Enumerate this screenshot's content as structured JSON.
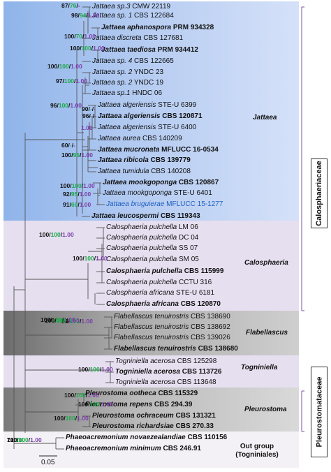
{
  "taxa": [
    {
      "name": "Jattaea sp.3",
      "code": "CMW 22119",
      "bold": false
    },
    {
      "name": "Jattaea sp. 1",
      "code": "CBS 122684",
      "bold": false
    },
    {
      "name": "Jattaea aphanospora",
      "code": "PRM 934328",
      "bold": true
    },
    {
      "name": "Jattaea discreta",
      "code": "CBS 127681",
      "bold": false
    },
    {
      "name": "Jattaea taediosa",
      "code": "PRM 934412",
      "bold": true
    },
    {
      "name": "Jattaea sp. 4",
      "code": "CBS 122665",
      "bold": false
    },
    {
      "name": "Jattaea sp. 2",
      "code": "YNDC 23",
      "bold": false
    },
    {
      "name": "Jattaea sp. 2",
      "code": "YNDC 19",
      "bold": false
    },
    {
      "name": "Jattaea sp.1",
      "code": "HNDC 06",
      "bold": false
    },
    {
      "name": "Jattaea algeriensis",
      "code": "STE-U 6399",
      "bold": false
    },
    {
      "name": "Jattaea algeriensis",
      "code": "CBS 120871",
      "bold": true
    },
    {
      "name": "Jattaea algeriensis",
      "code": "STE-U 6400",
      "bold": false
    },
    {
      "name": "Jattaea aurea",
      "code": "CBS 140209",
      "bold": false
    },
    {
      "name": "Jattaea mucronata",
      "code": "MFLUCC 16-0534",
      "bold": true
    },
    {
      "name": "Jattaea ribicola",
      "code": "CBS 139779",
      "bold": true
    },
    {
      "name": "Jattaea tumidula",
      "code": "CBS 140208",
      "bold": false
    },
    {
      "name": "Jattaea mookgoponga",
      "code": "CBS 120867",
      "bold": true
    },
    {
      "name": "Jattaea mookgoponga",
      "code": "STE-U 6401",
      "bold": false
    },
    {
      "name": "Jattaea bruguierae",
      "code": "MFLUCC 15-1277",
      "bold": false,
      "new": true
    },
    {
      "name": "Jattaea leucospermi",
      "code": "CBS 119343",
      "bold": true
    },
    {
      "name": "Calosphaeria pulchella",
      "code": "LM 06",
      "bold": false
    },
    {
      "name": "Calosphaeria pulchella",
      "code": "DC 04",
      "bold": false
    },
    {
      "name": "Calosphaeria pulchella",
      "code": "SS 07",
      "bold": false
    },
    {
      "name": "Calosphaeria pulchella",
      "code": "SM 05",
      "bold": false
    },
    {
      "name": "Calosphaeria pulchella",
      "code": "CBS 115999",
      "bold": true
    },
    {
      "name": "Calosphaeria pulchella",
      "code": "CCTU 316",
      "bold": false
    },
    {
      "name": "Calosphaeria africana",
      "code": "STE-U 6181",
      "bold": false
    },
    {
      "name": "Calosphaeria africana",
      "code": "CBS 120870",
      "bold": true
    },
    {
      "name": "Flabellascus tenuirostris",
      "code": "CBS 138690",
      "bold": false
    },
    {
      "name": "Flabellascus tenuirostris",
      "code": "CBS 138692",
      "bold": false
    },
    {
      "name": "Flabellascus tenuirostris",
      "code": "CBS 139026",
      "bold": false
    },
    {
      "name": "Flabellascus tenuirostris",
      "code": "CBS 138680",
      "bold": true
    },
    {
      "name": "Togniniella acerosa",
      "code": "CBS 125298",
      "bold": false
    },
    {
      "name": "Togniniella acerosa",
      "code": "CBS 113726",
      "bold": true
    },
    {
      "name": "Togniniella acerosa",
      "code": "CBS 113648",
      "bold": false
    },
    {
      "name": "Pleurostoma ootheca",
      "code": "CBS 115329",
      "bold": true
    },
    {
      "name": "Pleurostoma repens",
      "code": "CBS 294.39",
      "bold": true
    },
    {
      "name": "Pleurostoma ochraceum",
      "code": "CBS 131321",
      "bold": true
    },
    {
      "name": "Pleurostoma richardsiae",
      "code": "CBS 270.33",
      "bold": true
    },
    {
      "name": "Phaeoacremonium novaezealandiae",
      "code": "CBS 110156",
      "bold": true
    },
    {
      "name": "Phaeoacremonium minimum",
      "code": "CBS 246.91",
      "bold": true
    }
  ],
  "supports": [
    {
      "ml": "87",
      "mp": "76",
      "bi": "-"
    },
    {
      "ml": "98",
      "mp": "94",
      "bi": "1.00"
    },
    {
      "ml": "100",
      "mp": "70",
      "bi": "1.00"
    },
    {
      "ml": "100",
      "mp": "100",
      "bi": "1.00"
    },
    {
      "ml": "100",
      "mp": "100",
      "bi": "1.00"
    },
    {
      "ml": "97",
      "mp": "100",
      "bi": "1.00"
    },
    {
      "ml": "96",
      "mp": "100",
      "bi": "1.00"
    },
    {
      "ml": "90",
      "mp": "-",
      "bi": "-"
    },
    {
      "ml": "96",
      "mp": "-",
      "bi": "-"
    },
    {
      "ml": "",
      "mp": "",
      "bi": "1.00"
    },
    {
      "ml": "60",
      "mp": "-",
      "bi": "-"
    },
    {
      "ml": "100",
      "mp": "96",
      "bi": "1.00"
    },
    {
      "ml": "100",
      "mp": "100",
      "bi": "1.00"
    },
    {
      "ml": "92",
      "mp": "95",
      "bi": "1.00"
    },
    {
      "ml": "91",
      "mp": "60",
      "bi": "1.00"
    },
    {
      "ml": "100",
      "mp": "100",
      "bi": "1.00"
    },
    {
      "ml": "100",
      "mp": "100",
      "bi": "1.00"
    },
    {
      "ml": "100",
      "mp": "100",
      "bi": "1.00"
    },
    {
      "ml": "88",
      "mp": "100",
      "bi": "1.00"
    },
    {
      "ml": "100",
      "mp": "100",
      "bi": "1.00"
    },
    {
      "ml": "100",
      "mp": "100",
      "bi": "1.00"
    },
    {
      "ml": "100",
      "mp": "100",
      "bi": "1.00"
    },
    {
      "ml": "100",
      "mp": "100",
      "bi": "1.00"
    },
    {
      "ml": "100",
      "mp": "100",
      "bi": "1.00"
    },
    {
      "ml": "71",
      "mp": "100",
      "bi": ""
    },
    {
      "ml": "100",
      "mp": "100",
      "bi": "1.00"
    }
  ],
  "clades": {
    "jattaea": "Jattaea",
    "calosphaeria": "Calosphaeria",
    "flabellascus": "Flabellascus",
    "togniniella": "Togniniella",
    "pleurostoma": "Pleurostoma",
    "outgroup_line1": "Out group",
    "outgroup_line2": "(Togniniales)"
  },
  "families": {
    "calosphaeriaceae": "Calosphaeriaceae",
    "pleurostomataceae": "Pleurostomataceae"
  },
  "scale_bar": "0.05",
  "colors": {
    "ml": "#111111",
    "mp": "#1ea84a",
    "bi": "#7a3ea8",
    "new_taxon": "#1f5fbf"
  }
}
